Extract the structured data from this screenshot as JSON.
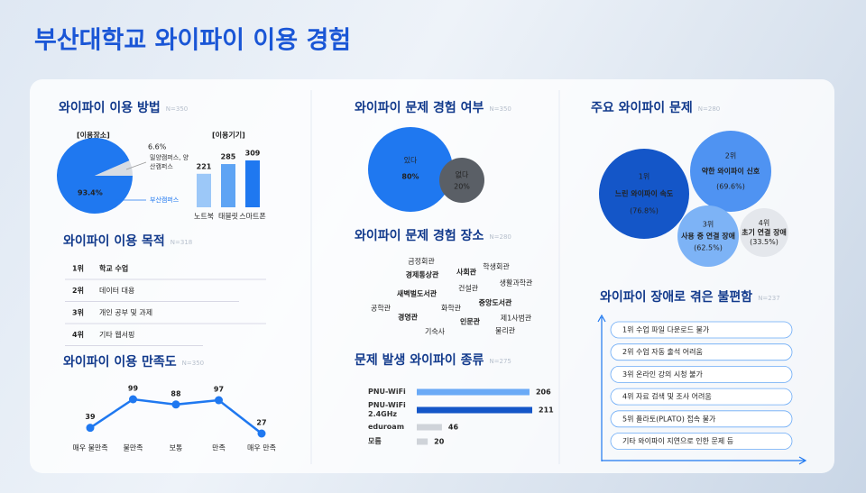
{
  "title": "부산대학교 와이파이 이용 경험",
  "chart_data": [
    {
      "type": "pie",
      "title": "와이파이 이용 방법",
      "note": "N=350",
      "subtitle": "[이용장소]",
      "categories": [
        "부산캠퍼스",
        "밀양캠퍼스, 양산캠퍼스"
      ],
      "values": [
        93.4,
        6.6
      ],
      "value_labels": [
        "93.4%",
        "6.6%"
      ],
      "colors": [
        "#1f78f0",
        "#d7dce3"
      ]
    },
    {
      "type": "bar",
      "subtitle": "[이용기기]",
      "categories": [
        "노트북",
        "태블릿",
        "스마트폰"
      ],
      "values": [
        221,
        285,
        309
      ],
      "colors": [
        "#9cc8f8",
        "#5ea4f4",
        "#1f78f0"
      ]
    },
    {
      "type": "line",
      "title": "와이파이 이용 만족도",
      "note": "N=350",
      "categories": [
        "매우 불만족",
        "불만족",
        "보통",
        "만족",
        "매우 만족"
      ],
      "values": [
        39,
        99,
        88,
        97,
        27
      ],
      "color": "#1f78f0"
    },
    {
      "type": "hbar",
      "title": "문제 발생 와이파이 종류",
      "note": "N=275",
      "categories": [
        "PNU-WiFi",
        "PNU-WiFi 2.4GHz",
        "eduroam",
        "모름"
      ],
      "values": [
        206,
        211,
        46,
        20
      ],
      "colors": [
        "#6aaaf6",
        "#1456c8",
        "#cfd3d9",
        "#cfd3d9"
      ]
    }
  ],
  "purpose": {
    "title": "와이파이 이용 목적",
    "note": "N=318",
    "rows": [
      [
        "1위",
        "학교 수업"
      ],
      [
        "2위",
        "데이터 대용"
      ],
      [
        "3위",
        "개인 공부 및 과제"
      ],
      [
        "4위",
        "기타 웹서핑"
      ]
    ]
  },
  "experience": {
    "title": "와이파이 문제 경험 여부",
    "note": "N=350",
    "yes": {
      "label": "있다",
      "value": "80%"
    },
    "no": {
      "label": "없다",
      "value": "20%"
    }
  },
  "places": {
    "title": "와이파이 문제 경험 장소",
    "note": "N=280",
    "words": [
      "금정회관",
      "학생회관",
      "경제통상관",
      "사회관",
      "생활과학관",
      "건설관",
      "새벽벌도서관",
      "중앙도서관",
      "공학관",
      "화학관",
      "경영관",
      "제1사범관",
      "인문관",
      "물리관",
      "기숙사"
    ]
  },
  "problems": {
    "title": "주요 와이파이 문제",
    "note": "N=280",
    "items": [
      [
        "1위",
        "느린 와이파이 속도",
        "(76.8%)"
      ],
      [
        "2위",
        "약한 와이파이 신호",
        "(69.6%)"
      ],
      [
        "3위",
        "사용 중 연결 장애",
        "(62.5%)"
      ],
      [
        "4위",
        "초기 연결 장애",
        "(33.5%)"
      ]
    ]
  },
  "inconvenience": {
    "title": "와이파이 장애로 겪은 불편함",
    "note": "N=237",
    "items": [
      "1위 수업 파일 다운로드 불가",
      "2위 수업 자동 출석 어려움",
      "3위 온라인 강의 시청 불가",
      "4위 자료 검색 및 조사 어려움",
      "5위 플라토(PLATO) 접속 불가",
      "기타 와이파이 지연으로 인한 문제 등"
    ]
  }
}
